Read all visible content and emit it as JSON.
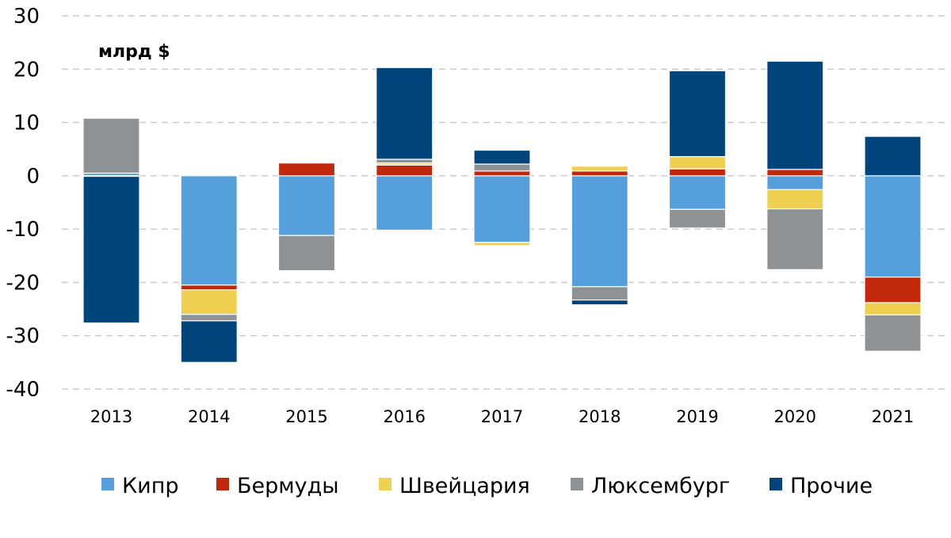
{
  "chart_data": {
    "type": "bar",
    "stacked": true,
    "unit_label": "млрд $",
    "categories": [
      "2013",
      "2014",
      "2015",
      "2016",
      "2017",
      "2018",
      "2019",
      "2020",
      "2021"
    ],
    "ylim": [
      -40,
      30
    ],
    "yticks": [
      30,
      20,
      10,
      0,
      -10,
      -20,
      -30,
      -40
    ],
    "grid": true,
    "legend_position": "bottom",
    "series": [
      {
        "name": "Кипр",
        "color": "#55A0DC",
        "values": [
          0.5,
          -20.5,
          -11.2,
          -10.2,
          -12.5,
          -20.8,
          -6.3,
          -2.6,
          -19.0
        ]
      },
      {
        "name": "Бермуды",
        "color": "#C0290C",
        "values": [
          -0.1,
          -0.9,
          2.4,
          2.0,
          0.9,
          0.9,
          1.3,
          1.2,
          -4.8
        ]
      },
      {
        "name": "Швейцария",
        "color": "#F0D050",
        "values": [
          0.0,
          -4.6,
          0.0,
          0.4,
          -0.6,
          0.9,
          2.3,
          -3.6,
          -2.3
        ]
      },
      {
        "name": "Люксембург",
        "color": "#8E9294",
        "values": [
          10.3,
          -1.2,
          -6.6,
          0.7,
          1.3,
          -2.5,
          -3.5,
          -11.4,
          -6.8
        ]
      },
      {
        "name": "Прочие",
        "color": "#00447C",
        "values": [
          -27.5,
          -7.8,
          0.0,
          17.2,
          2.6,
          -0.9,
          16.1,
          20.3,
          7.4
        ]
      }
    ]
  }
}
